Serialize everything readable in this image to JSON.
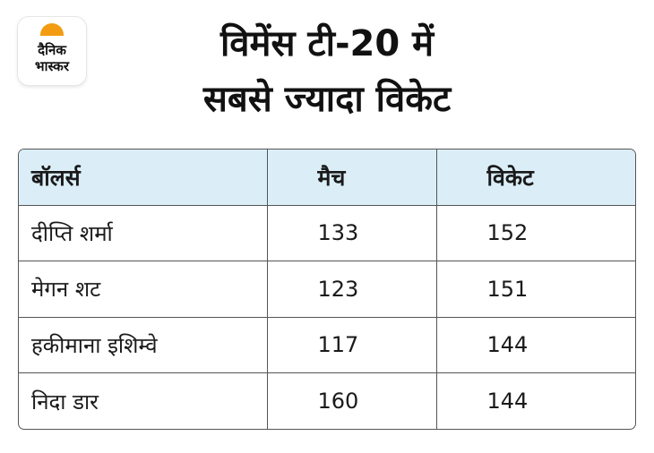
{
  "logo": {
    "line1": "दैनिक",
    "line2": "भास्कर",
    "accent": "#f39c12"
  },
  "title": {
    "line1": "विमेंस टी-20 में",
    "line2": "सबसे ज्यादा विकेट"
  },
  "chart_data": {
    "type": "table",
    "columns": [
      "बॉलर्स",
      "मैच",
      "विकेट"
    ],
    "rows": [
      {
        "bowler": "दीप्ति शर्मा",
        "matches": "133",
        "wickets": "152"
      },
      {
        "bowler": "मेगन शट",
        "matches": "123",
        "wickets": "151"
      },
      {
        "bowler": "हकीमाना इशिम्वे",
        "matches": "117",
        "wickets": "144"
      },
      {
        "bowler": "निदा डार",
        "matches": "160",
        "wickets": "144"
      }
    ]
  },
  "colors": {
    "header_bg": "#dbeef8",
    "border": "#555555"
  }
}
